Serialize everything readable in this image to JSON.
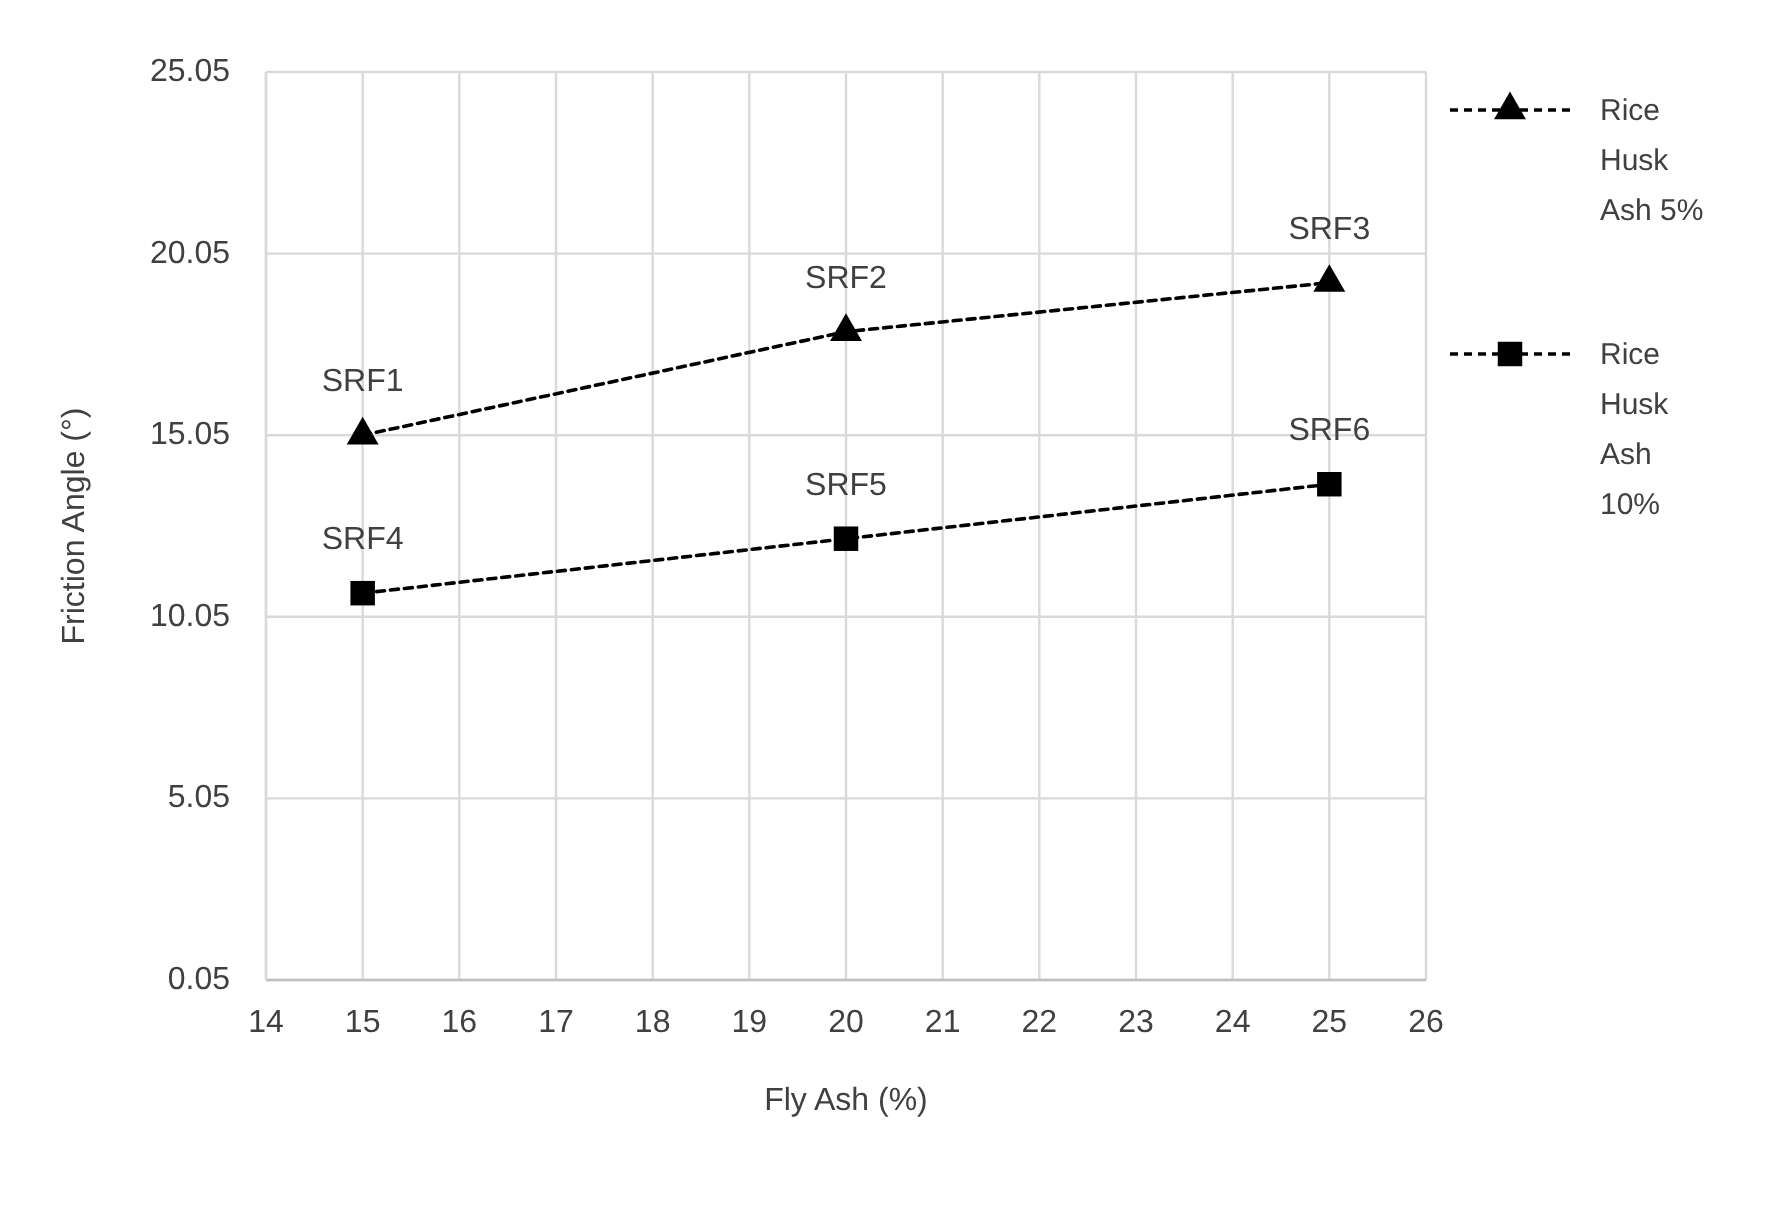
{
  "chart_data": {
    "type": "line",
    "xlabel": "Fly Ash (%)",
    "ylabel": "Friction Angle (°)",
    "xlim": [
      14,
      26
    ],
    "xticks": [
      14,
      15,
      16,
      17,
      18,
      19,
      20,
      21,
      22,
      23,
      24,
      25,
      26
    ],
    "ylim": [
      0.05,
      25.05
    ],
    "yticks": [
      0.05,
      5.05,
      10.05,
      15.05,
      20.05,
      25.05
    ],
    "grid": true,
    "legend": "right",
    "line_style": "dashed",
    "x": [
      15,
      20,
      25
    ],
    "series": [
      {
        "name": "Rice Husk Ash 5%",
        "color": "#000000",
        "marker": "triangle",
        "values": [
          15.05,
          17.9,
          19.25
        ]
      },
      {
        "name": "Rice Husk Ash 10%",
        "color": "#000000",
        "marker": "square",
        "values": [
          10.7,
          12.2,
          13.7
        ]
      }
    ],
    "annotations": [
      {
        "text": "SRF1",
        "x": 15,
        "y": 15.05
      },
      {
        "text": "SRF2",
        "x": 20,
        "y": 17.9
      },
      {
        "text": "SRF3",
        "x": 25,
        "y": 19.25
      },
      {
        "text": "SRF4",
        "x": 15,
        "y": 10.7
      },
      {
        "text": "SRF5",
        "x": 20,
        "y": 12.2
      },
      {
        "text": "SRF6",
        "x": 25,
        "y": 13.7
      }
    ]
  }
}
